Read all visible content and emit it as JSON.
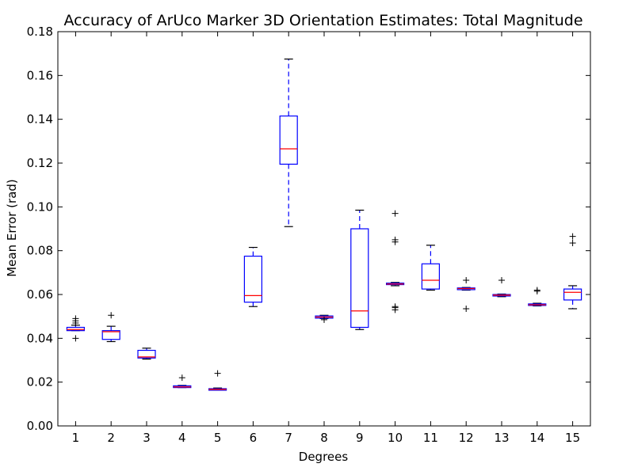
{
  "chart_data": {
    "type": "box",
    "title": "Accuracy of ArUco Marker 3D Orientation Estimates: Total Magnitude",
    "xlabel": "Degrees",
    "ylabel": "Mean Error (rad)",
    "ylim": [
      0,
      0.18
    ],
    "yticks": [
      "0.00",
      "0.02",
      "0.04",
      "0.06",
      "0.08",
      "0.10",
      "0.12",
      "0.14",
      "0.16",
      "0.18"
    ],
    "grid": false,
    "colors": {
      "box": "#0000ff",
      "median": "#ff0000",
      "outlier": "#000000"
    },
    "categories": [
      "1",
      "2",
      "3",
      "4",
      "5",
      "6",
      "7",
      "8",
      "9",
      "10",
      "11",
      "12",
      "13",
      "14",
      "15"
    ],
    "boxes": [
      {
        "category": "1",
        "whisker_low": 0.0435,
        "q1": 0.0435,
        "median": 0.044,
        "q3": 0.045,
        "whisker_high": 0.046,
        "outliers": [
          0.04,
          0.047,
          0.048,
          0.049
        ]
      },
      {
        "category": "2",
        "whisker_low": 0.0385,
        "q1": 0.0395,
        "median": 0.043,
        "q3": 0.0435,
        "whisker_high": 0.0455,
        "outliers": [
          0.0505
        ]
      },
      {
        "category": "3",
        "whisker_low": 0.0305,
        "q1": 0.031,
        "median": 0.0315,
        "q3": 0.0345,
        "whisker_high": 0.0355,
        "outliers": []
      },
      {
        "category": "4",
        "whisker_low": 0.0175,
        "q1": 0.0175,
        "median": 0.0178,
        "q3": 0.0183,
        "whisker_high": 0.0185,
        "outliers": [
          0.022
        ]
      },
      {
        "category": "5",
        "whisker_low": 0.0163,
        "q1": 0.0163,
        "median": 0.0167,
        "q3": 0.017,
        "whisker_high": 0.0173,
        "outliers": [
          0.024
        ]
      },
      {
        "category": "6",
        "whisker_low": 0.0545,
        "q1": 0.0565,
        "median": 0.0595,
        "q3": 0.0775,
        "whisker_high": 0.0815,
        "outliers": []
      },
      {
        "category": "7",
        "whisker_low": 0.091,
        "q1": 0.1195,
        "median": 0.1265,
        "q3": 0.1415,
        "whisker_high": 0.1675,
        "outliers": []
      },
      {
        "category": "8",
        "whisker_low": 0.049,
        "q1": 0.0492,
        "median": 0.0497,
        "q3": 0.0502,
        "whisker_high": 0.0505,
        "outliers": [
          0.0485
        ]
      },
      {
        "category": "9",
        "whisker_low": 0.044,
        "q1": 0.045,
        "median": 0.0525,
        "q3": 0.09,
        "whisker_high": 0.0985,
        "outliers": []
      },
      {
        "category": "10",
        "whisker_low": 0.064,
        "q1": 0.0645,
        "median": 0.0648,
        "q3": 0.0652,
        "whisker_high": 0.0655,
        "outliers": [
          0.053,
          0.054,
          0.0545,
          0.084,
          0.085,
          0.097
        ]
      },
      {
        "category": "11",
        "whisker_low": 0.062,
        "q1": 0.0625,
        "median": 0.0665,
        "q3": 0.074,
        "whisker_high": 0.0825,
        "outliers": []
      },
      {
        "category": "12",
        "whisker_low": 0.062,
        "q1": 0.0622,
        "median": 0.0627,
        "q3": 0.063,
        "whisker_high": 0.0632,
        "outliers": [
          0.0535,
          0.0665
        ]
      },
      {
        "category": "13",
        "whisker_low": 0.059,
        "q1": 0.0593,
        "median": 0.0597,
        "q3": 0.06,
        "whisker_high": 0.0602,
        "outliers": [
          0.0665
        ]
      },
      {
        "category": "14",
        "whisker_low": 0.0548,
        "q1": 0.055,
        "median": 0.0553,
        "q3": 0.0557,
        "whisker_high": 0.056,
        "outliers": [
          0.0615,
          0.062
        ]
      },
      {
        "category": "15",
        "whisker_low": 0.0535,
        "q1": 0.0575,
        "median": 0.061,
        "q3": 0.0625,
        "whisker_high": 0.064,
        "outliers": [
          0.0835,
          0.0865
        ]
      }
    ]
  }
}
